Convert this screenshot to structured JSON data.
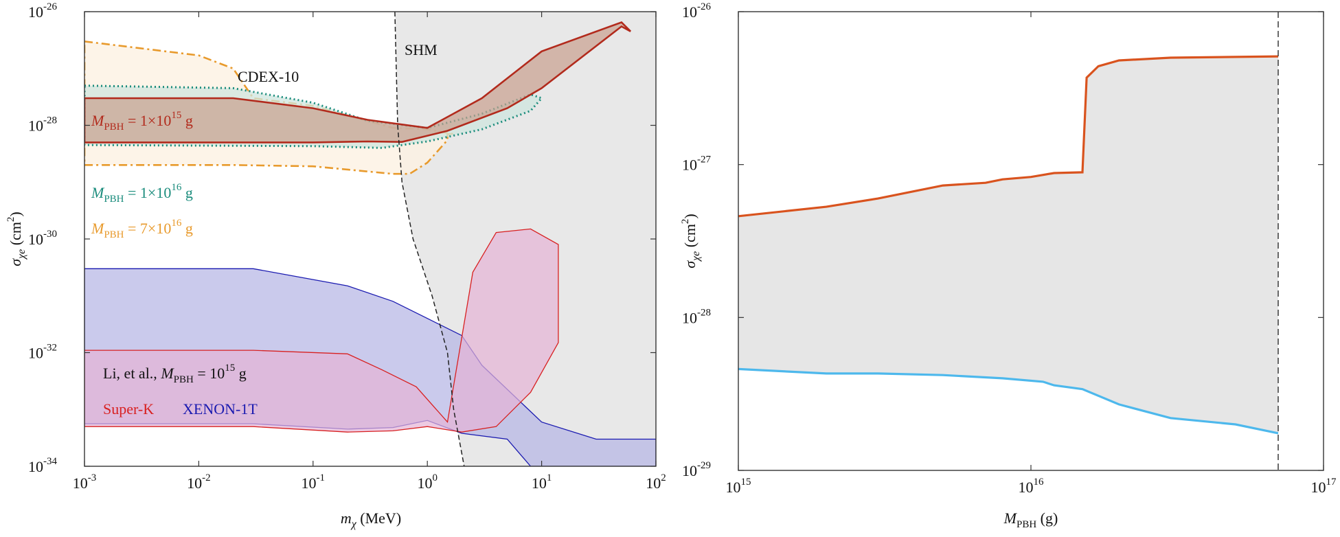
{
  "chart_data": [
    {
      "type": "area",
      "xlabel": "m_χ (MeV)",
      "ylabel": "σ_χe (cm²)",
      "xscale": "log",
      "yscale": "log",
      "xlim": [
        0.001,
        100
      ],
      "ylim": [
        1e-34,
        1e-26
      ],
      "x_ticks": [
        {
          "value": 0.001,
          "base": "10",
          "exp": "-3"
        },
        {
          "value": 0.01,
          "base": "10",
          "exp": "-2"
        },
        {
          "value": 0.1,
          "base": "10",
          "exp": "-1"
        },
        {
          "value": 1,
          "base": "10",
          "exp": "0"
        },
        {
          "value": 10,
          "base": "10",
          "exp": "1"
        },
        {
          "value": 100,
          "base": "10",
          "exp": "2"
        }
      ],
      "y_ticks": [
        {
          "value": 1e-34,
          "base": "10",
          "exp": "-34"
        },
        {
          "value": 1e-32,
          "base": "10",
          "exp": "-32"
        },
        {
          "value": 1e-30,
          "base": "10",
          "exp": "-30"
        },
        {
          "value": 1e-28,
          "base": "10",
          "exp": "-28"
        },
        {
          "value": 1e-26,
          "base": "10",
          "exp": "-26"
        }
      ],
      "series": [
        {
          "name": "SHM",
          "style": "black dashed boundary, grey fill",
          "color": "#222222",
          "points": [
            [
              0.52,
              1e-26
            ],
            [
              0.55,
              1e-28
            ],
            [
              0.6,
              1e-29
            ],
            [
              0.75,
              1e-30
            ],
            [
              1.1,
              1e-31
            ],
            [
              1.5,
              1e-32
            ],
            [
              1.7,
              1e-33
            ],
            [
              2.1,
              1e-34
            ]
          ]
        },
        {
          "name": "XENON-1T",
          "color": "#1a1ab0",
          "upper": [
            [
              0.001,
              3e-31
            ],
            [
              0.03,
              3e-31
            ],
            [
              0.2,
              1.5e-31
            ],
            [
              0.5,
              8e-32
            ],
            [
              1,
              4e-32
            ],
            [
              2,
              2e-32
            ],
            [
              3,
              6e-33
            ],
            [
              10,
              6e-34
            ],
            [
              30,
              3e-34
            ],
            [
              60,
              3e-34
            ],
            [
              100,
              3e-34
            ]
          ],
          "lower": [
            [
              0.001,
              5.6e-34
            ],
            [
              0.03,
              5.6e-34
            ],
            [
              0.2,
              4.5e-34
            ],
            [
              0.5,
              4.8e-34
            ],
            [
              1,
              6.4e-34
            ],
            [
              2,
              3.8e-34
            ],
            [
              5,
              3e-34
            ],
            [
              8,
              1e-34
            ],
            [
              100,
              1e-34
            ]
          ]
        },
        {
          "name": "Super-K",
          "color": "#d82020",
          "upper": [
            [
              0.001,
              1.1e-32
            ],
            [
              0.03,
              1.1e-32
            ],
            [
              0.2,
              9.5e-33
            ],
            [
              0.4,
              5e-33
            ],
            [
              0.8,
              2.5e-33
            ],
            [
              1.5,
              6e-34
            ],
            [
              2.5,
              2.6e-31
            ],
            [
              4,
              1.3e-30
            ],
            [
              8,
              1.5e-30
            ],
            [
              14,
              8e-31
            ]
          ],
          "lower": [
            [
              0.001,
              5e-34
            ],
            [
              0.03,
              5e-34
            ],
            [
              0.2,
              4e-34
            ],
            [
              0.5,
              4.2e-34
            ],
            [
              1,
              5e-34
            ],
            [
              2,
              4e-34
            ],
            [
              4,
              5e-34
            ],
            [
              8,
              2e-33
            ],
            [
              14,
              1.5e-32
            ]
          ]
        },
        {
          "name": "M_PBH = 1×10^15 g",
          "color": "#b22a1c",
          "upper": [
            [
              0.001,
              3e-28
            ],
            [
              0.02,
              3e-28
            ],
            [
              0.1,
              2e-28
            ],
            [
              0.3,
              1.25e-28
            ],
            [
              1,
              9e-29
            ],
            [
              3,
              3e-28
            ],
            [
              10,
              2e-27
            ],
            [
              50,
              6.5e-27
            ],
            [
              60,
              4.5e-27
            ]
          ],
          "lower": [
            [
              0.001,
              5e-29
            ],
            [
              0.02,
              5e-29
            ],
            [
              0.1,
              5e-29
            ],
            [
              0.3,
              5.2e-29
            ],
            [
              0.6,
              5.1e-29
            ],
            [
              1.5,
              8e-29
            ],
            [
              5,
              2e-28
            ],
            [
              10,
              4.5e-28
            ],
            [
              50,
              5.5e-27
            ]
          ]
        },
        {
          "name": "M_PBH = 1×10^16 g",
          "color": "#1a8c7c",
          "upper": [
            [
              0.001,
              5e-28
            ],
            [
              0.02,
              4.5e-28
            ],
            [
              0.1,
              2.5e-28
            ],
            [
              0.3,
              1.2e-28
            ],
            [
              1,
              9e-29
            ],
            [
              3,
              1.6e-28
            ],
            [
              8,
              3.5e-28
            ],
            [
              10,
              3e-28
            ]
          ],
          "lower": [
            [
              0.001,
              4.5e-29
            ],
            [
              0.1,
              4.3e-29
            ],
            [
              0.4,
              4e-29
            ],
            [
              1,
              5.2e-29
            ],
            [
              3,
              8.5e-29
            ],
            [
              8,
              1.8e-28
            ],
            [
              10,
              3e-28
            ]
          ]
        },
        {
          "name": "M_PBH = 7×10^16 g",
          "color": "#e89a2c",
          "upper": [
            [
              0.001,
              3e-27
            ],
            [
              0.01,
              1.7e-27
            ],
            [
              0.02,
              1e-27
            ],
            [
              0.03,
              3e-28
            ],
            [
              0.1,
              2.2e-28
            ],
            [
              0.5,
              9e-29
            ],
            [
              1,
              8.5e-29
            ],
            [
              1.7,
              7e-29
            ],
            [
              1.5,
              7e-29
            ]
          ],
          "lower": [
            [
              0.001,
              2e-29
            ],
            [
              0.02,
              2e-29
            ],
            [
              0.1,
              1.9e-29
            ],
            [
              0.5,
              1.4e-29
            ],
            [
              0.7,
              1.4e-29
            ],
            [
              1,
              2.2e-29
            ],
            [
              1.5,
              5.5e-29
            ]
          ]
        }
      ],
      "annotations": {
        "shm": "SHM",
        "cdex": "CDEX-10",
        "pbh15": {
          "pre": "M",
          "sub": "PBH",
          "mid": " = 1×10",
          "sup": "15",
          "post": " g"
        },
        "pbh16": {
          "pre": "M",
          "sub": "PBH",
          "mid": " = 1×10",
          "sup": "16",
          "post": " g"
        },
        "pbh7": {
          "pre": "M",
          "sub": "PBH",
          "mid": " = 7×10",
          "sup": "16",
          "post": " g"
        },
        "li": {
          "pre": "Li, et al., ",
          "m": "M",
          "sub": "PBH",
          "mid": " = 10",
          "sup": "15",
          "post": " g"
        },
        "superk": "Super-K",
        "xenon": "XENON-1T"
      },
      "axis_text": {
        "x_sym": "m",
        "x_sub": "χ",
        "x_unit": " (MeV)",
        "y_sym": "σ",
        "y_sub": "χe",
        "y_unit_pre": " (cm",
        "y_unit_sup": "2",
        "y_unit_post": ")"
      },
      "colors": {
        "shm_fill": "#e8e8e8",
        "xenon_fill": "#b8b8e6",
        "superk_fill": "#e6b4d6"
      }
    },
    {
      "type": "area",
      "xlabel": "M_PBH (g)",
      "ylabel": "σ_χe (cm²)",
      "xscale": "log",
      "yscale": "log",
      "xlim": [
        1000000000000000.0,
        1e+17
      ],
      "ylim": [
        1e-29,
        1e-26
      ],
      "x_ticks": [
        {
          "value": 1000000000000000.0,
          "base": "10",
          "exp": "15"
        },
        {
          "value": 1e+16,
          "base": "10",
          "exp": "16"
        },
        {
          "value": 1e+17,
          "base": "10",
          "exp": "17"
        }
      ],
      "y_ticks": [
        {
          "value": 1e-29,
          "base": "10",
          "exp": "-29"
        },
        {
          "value": 1e-28,
          "base": "10",
          "exp": "-28"
        },
        {
          "value": 1e-27,
          "base": "10",
          "exp": "-27"
        },
        {
          "value": 1e-26,
          "base": "10",
          "exp": "-26"
        }
      ],
      "vline_x": 7e+16,
      "series": [
        {
          "name": "upper",
          "color": "#d9531e",
          "points": [
            [
              1000000000000000.0,
              4.6e-28
            ],
            [
              2000000000000000.0,
              5.3e-28
            ],
            [
              3000000000000000.0,
              6e-28
            ],
            [
              5000000000000000.0,
              7.3e-28
            ],
            [
              7000000000000000.0,
              7.6e-28
            ],
            [
              8000000000000000.0,
              8e-28
            ],
            [
              1e+16,
              8.3e-28
            ],
            [
              1.2e+16,
              8.8e-28
            ],
            [
              1.5e+16,
              8.9e-28
            ],
            [
              1.55e+16,
              3.7e-27
            ],
            [
              1.7e+16,
              4.4e-27
            ],
            [
              2e+16,
              4.8e-27
            ],
            [
              3e+16,
              5e-27
            ],
            [
              7e+16,
              5.1e-27
            ]
          ]
        },
        {
          "name": "lower",
          "color": "#4db8ec",
          "points": [
            [
              1000000000000000.0,
              4.6e-29
            ],
            [
              2000000000000000.0,
              4.3e-29
            ],
            [
              3000000000000000.0,
              4.3e-29
            ],
            [
              5000000000000000.0,
              4.2e-29
            ],
            [
              8000000000000000.0,
              4e-29
            ],
            [
              1.1e+16,
              3.8e-29
            ],
            [
              1.2e+16,
              3.6e-29
            ],
            [
              1.5e+16,
              3.4e-29
            ],
            [
              2e+16,
              2.7e-29
            ],
            [
              3e+16,
              2.2e-29
            ],
            [
              5e+16,
              2e-29
            ],
            [
              7e+16,
              1.75e-29
            ]
          ]
        }
      ],
      "axis_text": {
        "x_sym": "M",
        "x_sub": "PBH",
        "x_unit": " (g)",
        "y_sym": "σ",
        "y_sub": "χe",
        "y_unit_pre": " (cm",
        "y_unit_sup": "2",
        "y_unit_post": ")"
      },
      "colors": {
        "fill": "#e6e6e6"
      }
    }
  ]
}
